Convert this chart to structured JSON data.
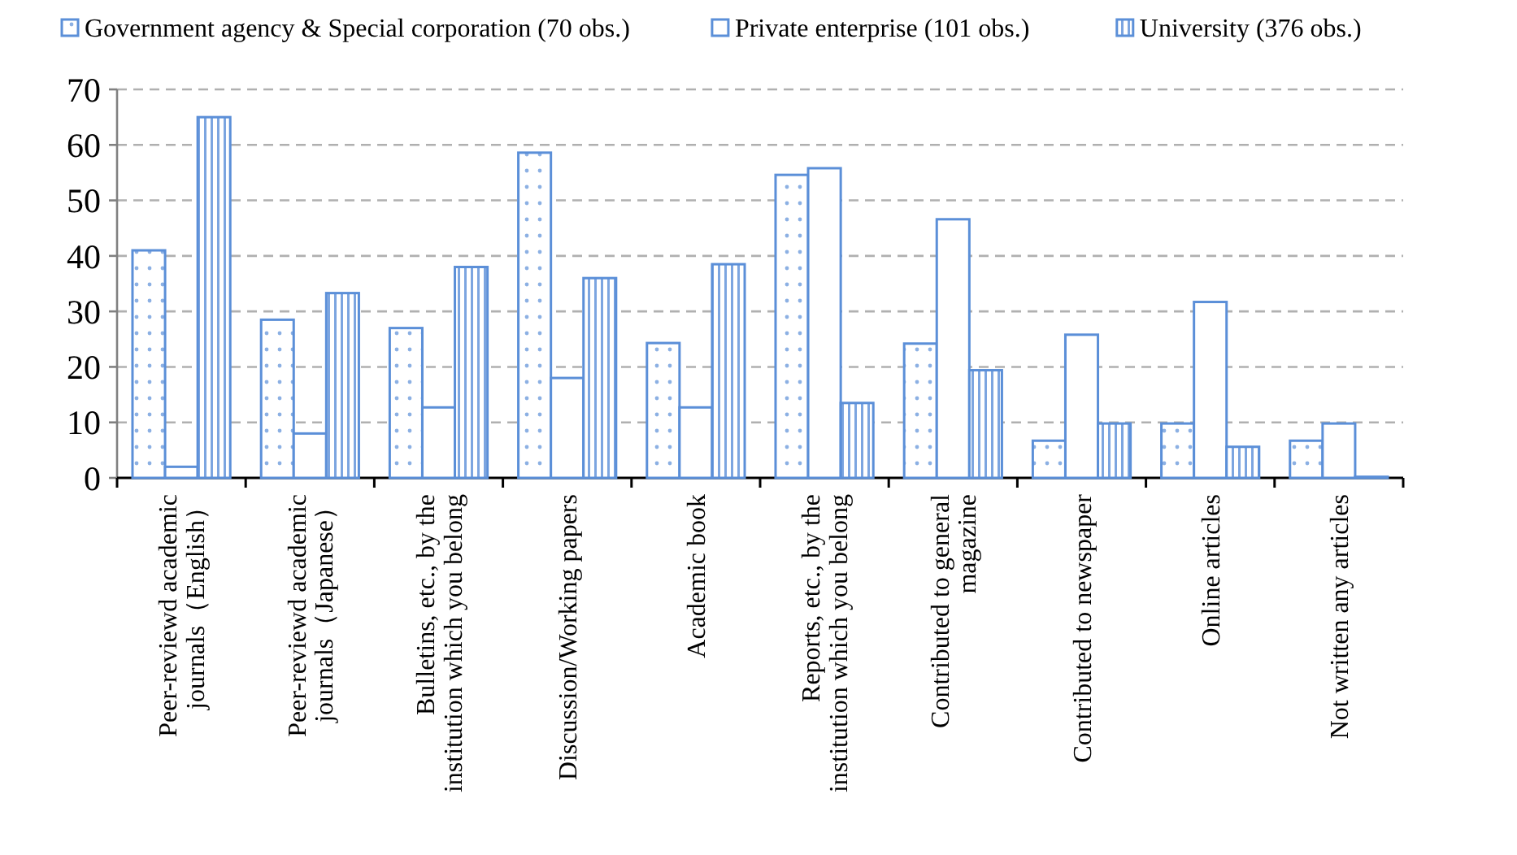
{
  "chart_data": {
    "type": "bar",
    "categories": [
      "Peer-reviewd academic journals（English）",
      "Peer-reviewd academic journals（Japanese）",
      "Bulletins, etc., by the institution which you belong",
      "Discussion/Working papers",
      "Academic book",
      "Reports, etc., by the institution which you belong",
      "Contributed to general magazine",
      "Contributed to newspaper",
      "Online articles",
      "Not written any articles"
    ],
    "series": [
      {
        "name": "Government agency & Special corporation (70 obs.)",
        "color": "#5b8fd8",
        "values": [
          41,
          28.5,
          27,
          58.6,
          24.3,
          54.6,
          24.2,
          6.7,
          9.8,
          6.7
        ]
      },
      {
        "name": "Private enterprise (101 obs.)",
        "color": "#5b8fd8",
        "values": [
          2,
          8,
          12.7,
          18,
          12.7,
          55.8,
          46.6,
          25.8,
          31.7,
          9.8
        ]
      },
      {
        "name": "University (376 obs.)",
        "color": "#5b8fd8",
        "values": [
          65,
          33.3,
          38,
          36,
          38.5,
          13.5,
          19.4,
          9.8,
          5.6,
          0.2
        ]
      }
    ],
    "ylim": [
      0,
      70
    ],
    "yticks": [
      0,
      10,
      20,
      30,
      40,
      50,
      60,
      70
    ],
    "grid": "y",
    "legend": "top left"
  }
}
